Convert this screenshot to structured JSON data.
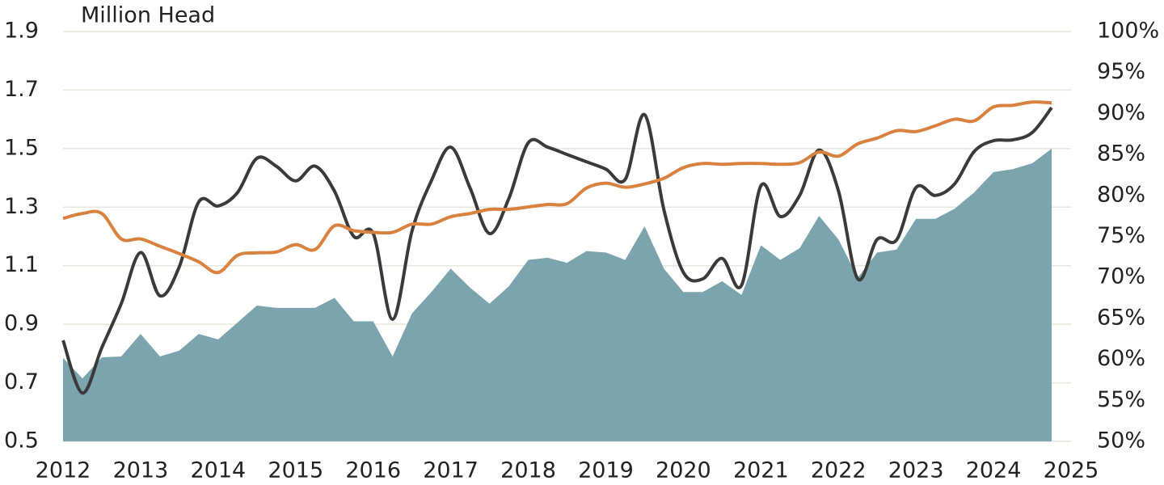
{
  "chart_data": {
    "type": "line",
    "y_label": "Million Head",
    "x": [
      2012,
      2012.25,
      2012.5,
      2012.75,
      2013,
      2013.25,
      2013.5,
      2013.75,
      2014,
      2014.25,
      2014.5,
      2014.75,
      2015,
      2015.25,
      2015.5,
      2015.75,
      2016,
      2016.25,
      2016.5,
      2016.75,
      2017,
      2017.25,
      2017.5,
      2017.75,
      2018,
      2018.25,
      2018.5,
      2018.75,
      2019,
      2019.25,
      2019.5,
      2019.75,
      2020,
      2020.25,
      2020.5,
      2020.75,
      2021,
      2021.25,
      2021.5,
      2021.75,
      2022,
      2022.25,
      2022.5,
      2022.75,
      2023,
      2023.25,
      2023.5,
      2023.75,
      2024,
      2024.25,
      2024.5,
      2024.75
    ],
    "series": [
      {
        "type": "area",
        "color": "#7ba4ae",
        "axis": "y",
        "values": [
          0.785,
          0.715,
          0.787,
          0.79,
          0.867,
          0.79,
          0.81,
          0.867,
          0.848,
          0.906,
          0.964,
          0.956,
          0.956,
          0.956,
          0.99,
          0.91,
          0.91,
          0.79,
          0.937,
          1.01,
          1.09,
          1.025,
          0.97,
          1.03,
          1.12,
          1.127,
          1.11,
          1.15,
          1.145,
          1.12,
          1.235,
          1.09,
          1.01,
          1.01,
          1.047,
          1.0,
          1.17,
          1.12,
          1.16,
          1.27,
          1.19,
          1.06,
          1.145,
          1.155,
          1.26,
          1.26,
          1.295,
          1.35,
          1.42,
          1.43,
          1.45,
          1.5
        ]
      },
      {
        "type": "line",
        "color": "#3a3a3a",
        "axis": "y",
        "values": [
          0.845,
          0.665,
          0.82,
          0.97,
          1.145,
          0.997,
          1.097,
          1.318,
          1.304,
          1.35,
          1.467,
          1.44,
          1.39,
          1.44,
          1.355,
          1.2,
          1.21,
          0.917,
          1.218,
          1.39,
          1.505,
          1.365,
          1.21,
          1.33,
          1.52,
          1.505,
          1.48,
          1.455,
          1.43,
          1.395,
          1.616,
          1.29,
          1.077,
          1.055,
          1.125,
          1.033,
          1.373,
          1.268,
          1.34,
          1.495,
          1.356,
          1.055,
          1.19,
          1.188,
          1.367,
          1.34,
          1.38,
          1.49,
          1.527,
          1.53,
          1.555,
          1.64
        ]
      },
      {
        "type": "line",
        "color": "#d9813f",
        "axis": "y2",
        "values": [
          77.2,
          77.8,
          77.8,
          74.7,
          74.7,
          73.8,
          72.9,
          71.9,
          70.6,
          72.7,
          73.0,
          73.1,
          74.0,
          73.4,
          76.3,
          75.7,
          75.5,
          75.5,
          76.5,
          76.5,
          77.4,
          77.8,
          78.3,
          78.3,
          78.6,
          78.9,
          79.0,
          80.9,
          81.5,
          81.0,
          81.4,
          82.1,
          83.4,
          83.9,
          83.8,
          83.9,
          83.9,
          83.8,
          84.0,
          85.3,
          84.8,
          86.3,
          87.0,
          87.9,
          87.8,
          88.5,
          89.3,
          89.1,
          90.8,
          91.0,
          91.4,
          91.3
        ]
      }
    ],
    "xlim": [
      2012,
      2025
    ],
    "xticks": [
      2012,
      2013,
      2014,
      2015,
      2016,
      2017,
      2018,
      2019,
      2020,
      2021,
      2022,
      2023,
      2024,
      2025
    ],
    "ylim": [
      0.5,
      1.9
    ],
    "yticks": [
      0.5,
      0.7,
      0.9,
      1.1,
      1.3,
      1.5,
      1.7,
      1.9
    ],
    "y2lim": [
      50,
      100
    ],
    "y2ticks": [
      {
        "value": 50,
        "label": "50%"
      },
      {
        "value": 55,
        "label": "55%"
      },
      {
        "value": 60,
        "label": "60%"
      },
      {
        "value": 65,
        "label": "65%"
      },
      {
        "value": 70,
        "label": "70%"
      },
      {
        "value": 75,
        "label": "75%"
      },
      {
        "value": 80,
        "label": "80%"
      },
      {
        "value": 85,
        "label": "85%"
      },
      {
        "value": 90,
        "label": "90%"
      },
      {
        "value": 95,
        "label": "95%"
      },
      {
        "value": 100,
        "label": "100%"
      }
    ],
    "grid": true
  }
}
